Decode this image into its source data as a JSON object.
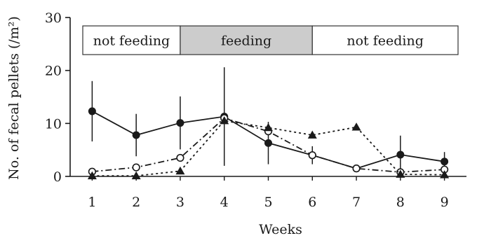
{
  "chart_data": {
    "type": "line",
    "xlabel": "Weeks",
    "ylabel": "No. of fecal pellets (/m²)",
    "x": [
      1,
      2,
      3,
      4,
      5,
      6,
      7,
      8,
      9
    ],
    "xlim": [
      0.5,
      9.5
    ],
    "ylim": [
      0,
      30
    ],
    "yticks": [
      0,
      10,
      20,
      30
    ],
    "grid": false,
    "legend": "none",
    "phases": [
      {
        "label": "not feeding",
        "x_start": 0.5,
        "x_end": 3,
        "shaded": false
      },
      {
        "label": "feeding",
        "x_start": 3,
        "x_end": 6,
        "shaded": true
      },
      {
        "label": "not feeding",
        "x_start": 6,
        "x_end": 9.5,
        "shaded": false
      }
    ],
    "series": [
      {
        "marker": "filled-circle",
        "line_style": "solid",
        "values": [
          12.3,
          7.8,
          10.1,
          11.3,
          6.3,
          4.0,
          1.5,
          4.1,
          2.8
        ],
        "error": [
          5.7,
          4.0,
          5.0,
          9.3,
          4.0,
          1.7,
          0.5,
          3.6,
          1.8
        ],
        "error_upper_only": [
          false,
          false,
          false,
          false,
          false,
          false,
          false,
          false,
          false
        ]
      },
      {
        "marker": "open-circle",
        "line_style": "dash-dot",
        "values": [
          0.9,
          1.7,
          3.5,
          11.0,
          8.5,
          4.0,
          1.5,
          0.8,
          1.3
        ],
        "error": [
          0,
          0,
          0,
          0,
          0,
          0,
          0,
          0,
          0
        ]
      },
      {
        "marker": "filled-triangle",
        "line_style": "dotted",
        "values": [
          0.1,
          0.1,
          1.0,
          10.5,
          9.2,
          7.8,
          9.3,
          0.4,
          0.3
        ],
        "error": [
          0,
          0,
          0,
          0,
          0,
          0,
          0,
          0,
          0
        ]
      }
    ]
  },
  "colors": {
    "ink": "#1a1a1a",
    "feeding_band": "#cccccc",
    "band_border": "#333333"
  }
}
